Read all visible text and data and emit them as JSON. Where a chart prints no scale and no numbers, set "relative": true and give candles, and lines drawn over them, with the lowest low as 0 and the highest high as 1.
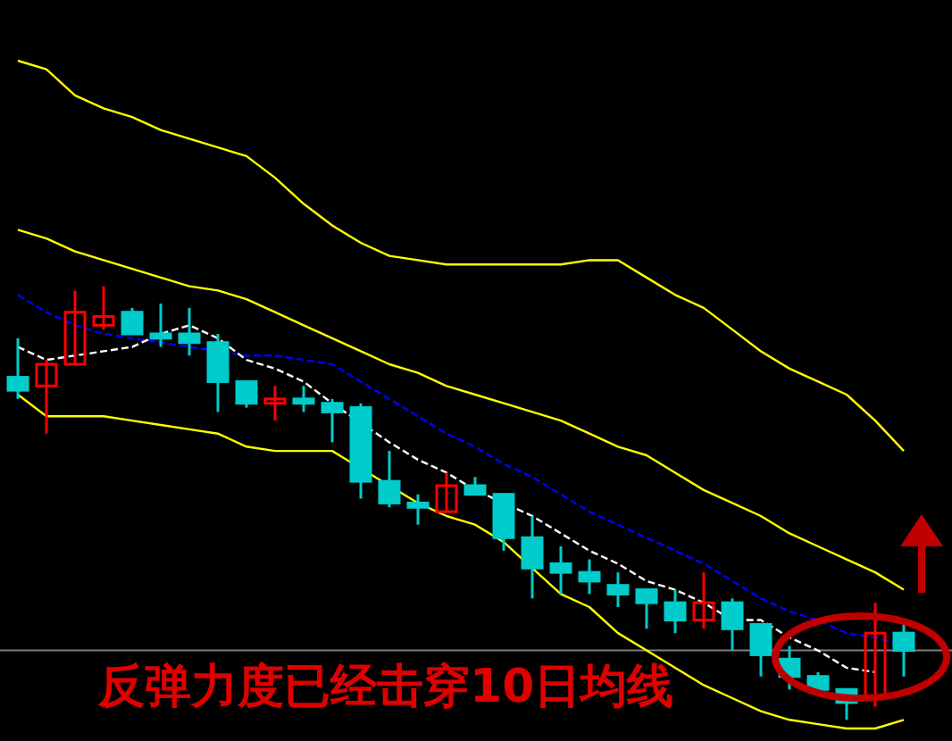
{
  "chart_data": {
    "type": "candlestick",
    "relative": true,
    "categories": [
      null,
      null,
      null,
      null,
      null,
      null,
      null,
      null,
      null,
      null,
      null,
      null,
      null,
      null,
      null,
      null,
      null,
      null,
      null,
      null,
      null,
      null,
      null,
      null,
      null,
      null,
      null,
      null,
      null,
      null,
      null,
      null
    ],
    "ohlc": [
      [
        0.79,
        0.88,
        0.74,
        0.76
      ],
      [
        0.77,
        0.83,
        0.66,
        0.82
      ],
      [
        0.82,
        0.99,
        0.82,
        0.94
      ],
      [
        0.91,
        1.0,
        0.9,
        0.93
      ],
      [
        0.94,
        0.95,
        0.89,
        0.89
      ],
      [
        0.89,
        0.96,
        0.86,
        0.88
      ],
      [
        0.89,
        0.95,
        0.84,
        0.87
      ],
      [
        0.87,
        0.89,
        0.71,
        0.78
      ],
      [
        0.78,
        0.78,
        0.72,
        0.73
      ],
      [
        0.73,
        0.77,
        0.69,
        0.74
      ],
      [
        0.74,
        0.77,
        0.71,
        0.73
      ],
      [
        0.73,
        0.74,
        0.64,
        0.71
      ],
      [
        0.72,
        0.73,
        0.51,
        0.55
      ],
      [
        0.55,
        0.62,
        0.49,
        0.5
      ],
      [
        0.5,
        0.52,
        0.45,
        0.49
      ],
      [
        0.48,
        0.57,
        0.48,
        0.54
      ],
      [
        0.54,
        0.56,
        0.52,
        0.52
      ],
      [
        0.52,
        0.52,
        0.39,
        0.42
      ],
      [
        0.42,
        0.47,
        0.28,
        0.35
      ],
      [
        0.36,
        0.4,
        0.29,
        0.34
      ],
      [
        0.34,
        0.37,
        0.29,
        0.32
      ],
      [
        0.31,
        0.34,
        0.26,
        0.29
      ],
      [
        0.3,
        0.3,
        0.21,
        0.27
      ],
      [
        0.27,
        0.3,
        0.2,
        0.23
      ],
      [
        0.23,
        0.34,
        0.21,
        0.27
      ],
      [
        0.27,
        0.28,
        0.16,
        0.21
      ],
      [
        0.22,
        0.22,
        0.1,
        0.15
      ],
      [
        0.14,
        0.17,
        0.07,
        0.1
      ],
      [
        0.1,
        0.11,
        0.06,
        0.07
      ],
      [
        0.07,
        0.07,
        0.0,
        0.04
      ],
      [
        0.05,
        0.27,
        0.03,
        0.2
      ],
      [
        0.2,
        0.23,
        0.1,
        0.16
      ]
    ],
    "series": [
      {
        "type": "line",
        "color": "#ffff00",
        "line_style": "solid",
        "values": [
          1.52,
          1.5,
          1.44,
          1.41,
          1.39,
          1.36,
          1.34,
          1.32,
          1.3,
          1.25,
          1.19,
          1.14,
          1.1,
          1.07,
          1.06,
          1.05,
          1.05,
          1.05,
          1.05,
          1.05,
          1.06,
          1.06,
          1.02,
          0.98,
          0.95,
          0.9,
          0.85,
          0.81,
          0.78,
          0.75,
          0.69,
          0.62
        ]
      },
      {
        "type": "line",
        "color": "#ffff00",
        "line_style": "solid",
        "values": [
          1.13,
          1.11,
          1.08,
          1.06,
          1.04,
          1.02,
          1.0,
          0.99,
          0.97,
          0.94,
          0.91,
          0.88,
          0.85,
          0.82,
          0.8,
          0.77,
          0.75,
          0.73,
          0.71,
          0.69,
          0.66,
          0.63,
          0.61,
          0.57,
          0.53,
          0.5,
          0.47,
          0.43,
          0.4,
          0.37,
          0.34,
          0.3
        ]
      },
      {
        "type": "line",
        "color": "#ffff00",
        "line_style": "solid",
        "values": [
          0.75,
          0.7,
          0.7,
          0.7,
          0.69,
          0.68,
          0.67,
          0.66,
          0.63,
          0.62,
          0.62,
          0.62,
          null,
          null,
          0.5,
          0.47,
          0.45,
          0.41,
          0.35,
          0.29,
          0.26,
          0.2,
          0.16,
          0.12,
          0.08,
          0.05,
          0.02,
          0.0,
          -0.01,
          -0.02,
          -0.02,
          0.0
        ]
      },
      {
        "type": "line",
        "color": "#0000ff",
        "line_style": "dashed",
        "values": [
          0.98,
          0.94,
          0.91,
          0.89,
          0.88,
          0.87,
          0.86,
          null,
          0.84,
          0.84,
          0.83,
          0.82,
          0.78,
          0.74,
          0.7,
          0.66,
          0.63,
          0.59,
          0.56,
          0.52,
          0.48,
          0.45,
          0.42,
          0.39,
          0.36,
          0.32,
          0.28,
          0.25,
          0.23,
          0.2,
          0.19,
          0.17
        ]
      },
      {
        "type": "line",
        "color": "#ffffff",
        "line_style": "dashed",
        "values": [
          0.86,
          0.83,
          0.84,
          0.85,
          0.86,
          0.89,
          0.91,
          0.88,
          0.83,
          0.81,
          0.78,
          0.73,
          null,
          0.64,
          0.6,
          0.57,
          0.53,
          null,
          0.47,
          0.43,
          0.39,
          0.36,
          0.32,
          0.3,
          0.27,
          0.23,
          0.23,
          0.19,
          0.16,
          0.12,
          0.11,
          null
        ]
      }
    ],
    "ref_lines": [
      {
        "axis": "y",
        "value": 0.16,
        "color": "#808080"
      }
    ],
    "annotations": [
      "反弹力度已经击穿10日均线"
    ]
  }
}
